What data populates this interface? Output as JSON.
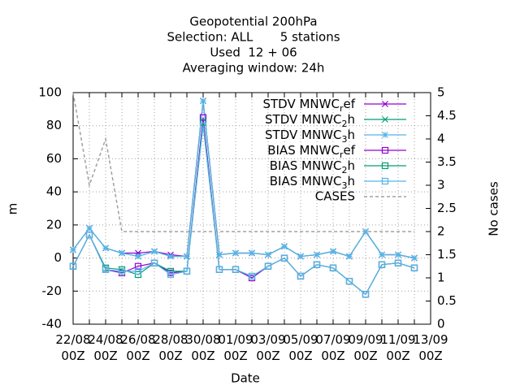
{
  "chart_data": {
    "type": "line",
    "title": "Geopotential 200hPa",
    "subtitle": [
      "Selection: ALL       5 stations",
      "Used  12 + 06",
      "Averaging window: 24h"
    ],
    "x_label": "Date",
    "y_label": "m",
    "y2_label": "No cases",
    "categories": [
      "22/08 00Z",
      null,
      "24/08 00Z",
      null,
      "26/08 00Z",
      null,
      "28/08 00Z",
      null,
      "30/08 00Z",
      null,
      "01/09 00Z",
      null,
      "03/09 00Z",
      null,
      "05/09 00Z",
      null,
      "07/09 00Z",
      null,
      "09/09 00Z",
      null,
      "11/09 00Z",
      null,
      "13/09 00Z"
    ],
    "ylim": [
      -40,
      100
    ],
    "yticks": [
      -40,
      -20,
      0,
      20,
      40,
      60,
      80,
      100
    ],
    "y2lim": [
      0,
      5
    ],
    "y2ticks": [
      0,
      0.5,
      1,
      1.5,
      2,
      2.5,
      3,
      3.5,
      4,
      4.5,
      5
    ],
    "grid": true,
    "legend": "top-right",
    "series": [
      {
        "name": "STDV MNWC_ref",
        "color": "#9400d3",
        "marker": "cross",
        "values": [
          5,
          18,
          6,
          3,
          3,
          4,
          2,
          1,
          95,
          2,
          3,
          3,
          2,
          7,
          1,
          2,
          4,
          1,
          16,
          2,
          2,
          0,
          null
        ]
      },
      {
        "name": "STDV MNWC_2h",
        "color": "#009e73",
        "marker": "cross",
        "values": [
          5,
          18,
          6,
          3,
          1,
          4,
          1,
          1,
          95,
          2,
          3,
          3,
          2,
          7,
          1,
          2,
          4,
          1,
          16,
          2,
          2,
          0,
          null
        ]
      },
      {
        "name": "STDV MNWC_3h",
        "color": "#56b4e9",
        "marker": "star",
        "values": [
          5,
          18,
          6,
          3,
          1,
          4,
          1,
          1,
          95,
          2,
          3,
          3,
          2,
          7,
          1,
          2,
          4,
          1,
          16,
          2,
          2,
          0,
          null
        ]
      },
      {
        "name": "BIAS MNWC_ref",
        "color": "#9400d3",
        "marker": "square",
        "values": [
          -5,
          14,
          -7,
          -9,
          -5,
          -3,
          -9,
          -8,
          85,
          -7,
          -7,
          -12,
          -5,
          0,
          -11,
          -4,
          -6,
          -14,
          -22,
          -4,
          -3,
          -6,
          null
        ]
      },
      {
        "name": "BIAS MNWC_2h",
        "color": "#009e73",
        "marker": "square",
        "values": [
          -5,
          14,
          -6,
          -7,
          -10,
          -3,
          -8,
          -8,
          82,
          -7,
          -7,
          -11,
          -5,
          0,
          -11,
          -4,
          -6,
          -14,
          -22,
          -4,
          -3,
          -6,
          null
        ]
      },
      {
        "name": "BIAS MNWC_3h",
        "color": "#56b4e9",
        "marker": "square",
        "values": [
          -5,
          14,
          -7,
          -8,
          -8,
          -3,
          -10,
          -8,
          80,
          -7,
          -7,
          -11,
          -5,
          0,
          -11,
          -4,
          -6,
          -14,
          -22,
          -4,
          -3,
          -6,
          null
        ]
      },
      {
        "name": "CASES",
        "color": "#a0a0a0",
        "marker": "dash",
        "axis": "y2",
        "values": [
          5,
          3,
          4,
          2,
          2,
          2,
          2,
          2,
          2,
          2,
          2,
          2,
          2,
          2,
          2,
          2,
          2,
          2,
          2,
          2,
          2,
          2,
          null
        ]
      }
    ]
  }
}
